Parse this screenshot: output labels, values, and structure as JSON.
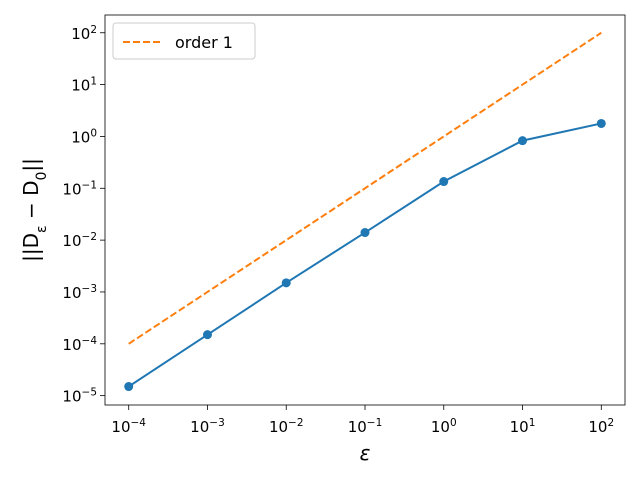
{
  "chart_data": {
    "type": "line",
    "xlabel": "ε",
    "ylabel": "||D_ε − D_0||",
    "xscale": "log",
    "yscale": "log",
    "xlim": [
      5e-05,
      200
    ],
    "ylim": [
      6.6e-06,
      220
    ],
    "xticks": [
      {
        "value": 0.0001,
        "label": "10^−4"
      },
      {
        "value": 0.001,
        "label": "10^−3"
      },
      {
        "value": 0.01,
        "label": "10^−2"
      },
      {
        "value": 0.1,
        "label": "10^−1"
      },
      {
        "value": 1,
        "label": "10^0"
      },
      {
        "value": 10,
        "label": "10^1"
      },
      {
        "value": 100,
        "label": "10^2"
      }
    ],
    "yticks": [
      {
        "value": 1e-05,
        "label": "10^−5"
      },
      {
        "value": 0.0001,
        "label": "10^−4"
      },
      {
        "value": 0.001,
        "label": "10^−3"
      },
      {
        "value": 0.01,
        "label": "10^−2"
      },
      {
        "value": 0.1,
        "label": "10^−1"
      },
      {
        "value": 1,
        "label": "10^0"
      },
      {
        "value": 10,
        "label": "10^1"
      },
      {
        "value": 100,
        "label": "10^2"
      }
    ],
    "x": [
      0.0001,
      0.001,
      0.01,
      0.1,
      1,
      10,
      100
    ],
    "series": [
      {
        "color": "#1f77b4",
        "style": "solid",
        "marker": true,
        "values": [
          1.5e-05,
          0.00015,
          0.0015,
          0.014,
          0.135,
          0.83,
          1.78
        ]
      },
      {
        "name": "order 1",
        "color": "#ff7f0e",
        "style": "dashed",
        "marker": false,
        "values": [
          0.0001,
          0.001,
          0.01,
          0.1,
          1,
          10,
          100
        ]
      }
    ],
    "legend": "upper left"
  }
}
